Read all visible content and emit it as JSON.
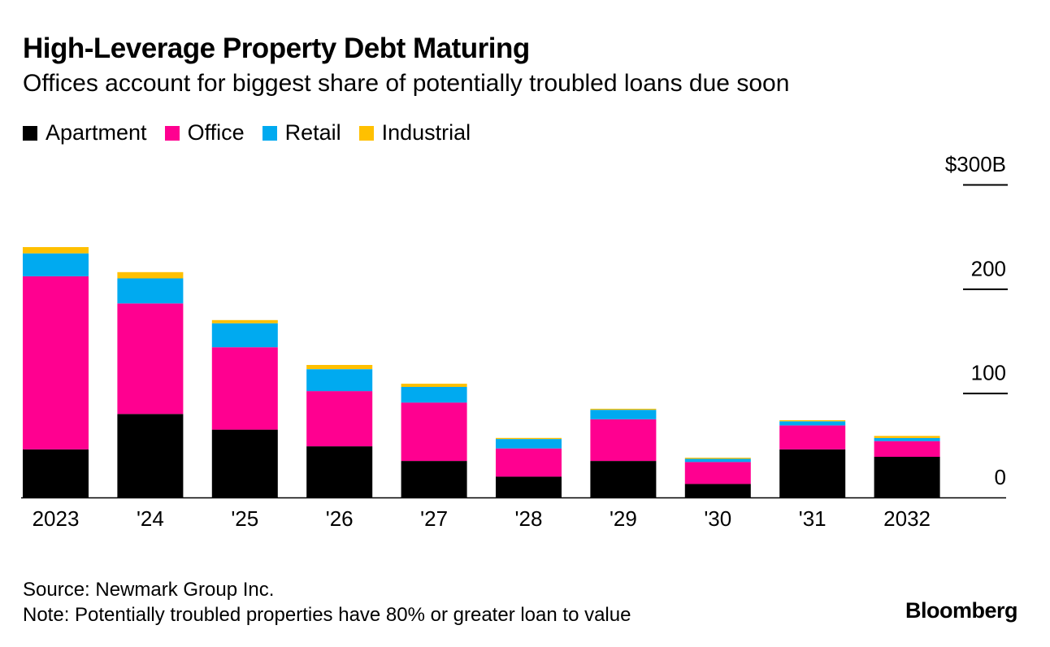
{
  "header": {
    "title": "High-Leverage Property Debt Maturing",
    "subtitle": "Offices account for biggest share of potentially troubled loans due soon"
  },
  "legend": [
    {
      "label": "Apartment",
      "color": "#000000"
    },
    {
      "label": "Office",
      "color": "#ff0090"
    },
    {
      "label": "Retail",
      "color": "#00aaf0"
    },
    {
      "label": "Industrial",
      "color": "#ffc000"
    }
  ],
  "chart_data": {
    "type": "bar",
    "stacked": true,
    "categories": [
      "2023",
      "'24",
      "'25",
      "'26",
      "'27",
      "'28",
      "'29",
      "'30",
      "'31",
      "2032"
    ],
    "series": [
      {
        "name": "Apartment",
        "color": "#000000",
        "values": [
          46,
          80,
          65,
          49,
          35,
          20,
          35,
          13,
          46,
          39
        ]
      },
      {
        "name": "Office",
        "color": "#ff0090",
        "values": [
          166,
          106,
          79,
          53,
          56,
          27,
          40,
          21,
          23,
          15
        ]
      },
      {
        "name": "Retail",
        "color": "#00aaf0",
        "values": [
          22,
          24,
          23,
          21,
          15,
          9,
          9,
          3,
          4,
          3
        ]
      },
      {
        "name": "Industrial",
        "color": "#ffc000",
        "values": [
          6,
          6,
          3,
          4,
          3,
          1,
          1,
          1,
          1,
          2
        ]
      }
    ],
    "y_ticks": [
      "$300B",
      "200",
      "100",
      "0"
    ],
    "y_tick_values": [
      300,
      200,
      100,
      0
    ],
    "ylim": [
      0,
      300
    ],
    "axis_position": "right",
    "grid": false
  },
  "footer": {
    "source": "Source: Newmark Group Inc.",
    "note": "Note: Potentially troubled properties have 80% or greater loan to value",
    "brand": "Bloomberg"
  }
}
